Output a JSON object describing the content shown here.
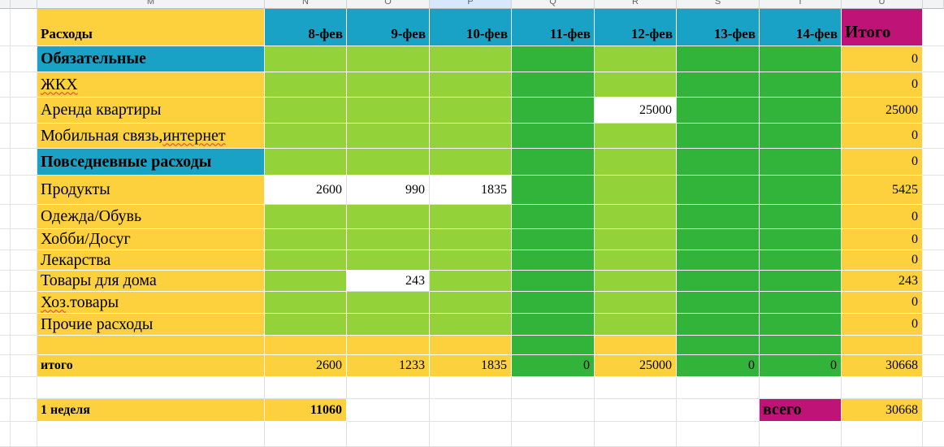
{
  "sheet": {
    "colors": {
      "yellow": "#fcd13d",
      "light_green": "#94d239",
      "dark_green": "#32b33a",
      "teal": "#1aa2c6",
      "magenta": "#c01377",
      "header_bg": "#f1f3f4",
      "header_selected": "#d8e8fc",
      "grid_grey": "#e0e0e0",
      "squiggle_red": "#e53935"
    },
    "column_headers": [
      "M",
      "N",
      "O",
      "P",
      "Q",
      "R",
      "S",
      "T",
      "U"
    ],
    "selected_column": "P",
    "title_row": {
      "label": "Расходы",
      "dates": [
        "8-фев",
        "9-фев",
        "10-фев",
        "11-фев",
        "12-фев",
        "13-фев",
        "14-фев"
      ],
      "total_label": "Итого"
    },
    "rows": [
      {
        "parts": [
          {
            "t": "Обязательные"
          }
        ],
        "label_bg": "T",
        "bold": true,
        "cells": [
          {
            "bg": "L"
          },
          {
            "bg": "L"
          },
          {
            "bg": "L"
          },
          {
            "bg": "D"
          },
          {
            "bg": "L"
          },
          {
            "bg": "D"
          },
          {
            "bg": "D"
          }
        ],
        "total": {
          "bg": "Y",
          "v": "0"
        }
      },
      {
        "parts": [
          {
            "t": "ЖКХ",
            "sq": true
          }
        ],
        "label_bg": "Y",
        "cells": [
          {
            "bg": "L"
          },
          {
            "bg": "L"
          },
          {
            "bg": "L"
          },
          {
            "bg": "D"
          },
          {
            "bg": "L"
          },
          {
            "bg": "D"
          },
          {
            "bg": "D"
          }
        ],
        "total": {
          "bg": "Y",
          "v": "0"
        }
      },
      {
        "parts": [
          {
            "t": "Аренда квартиры"
          }
        ],
        "label_bg": "Y",
        "cells": [
          {
            "bg": "L"
          },
          {
            "bg": "L"
          },
          {
            "bg": "L"
          },
          {
            "bg": "D"
          },
          {
            "bg": "W",
            "v": "25000"
          },
          {
            "bg": "D"
          },
          {
            "bg": "D"
          }
        ],
        "total": {
          "bg": "Y",
          "v": "25000"
        }
      },
      {
        "parts": [
          {
            "t": "Мобильная связь, "
          },
          {
            "t": "интернет",
            "sq": true
          }
        ],
        "label_bg": "Y",
        "cells": [
          {
            "bg": "L"
          },
          {
            "bg": "L"
          },
          {
            "bg": "L"
          },
          {
            "bg": "D"
          },
          {
            "bg": "L"
          },
          {
            "bg": "D"
          },
          {
            "bg": "D"
          }
        ],
        "total": {
          "bg": "Y",
          "v": "0"
        }
      },
      {
        "parts": [
          {
            "t": "Повседневные расходы"
          }
        ],
        "label_bg": "T",
        "bold": true,
        "cells": [
          {
            "bg": "L"
          },
          {
            "bg": "L"
          },
          {
            "bg": "L"
          },
          {
            "bg": "D"
          },
          {
            "bg": "L"
          },
          {
            "bg": "D"
          },
          {
            "bg": "D"
          }
        ],
        "total": {
          "bg": "Y",
          "v": "0"
        }
      },
      {
        "parts": [
          {
            "t": "Продукты"
          }
        ],
        "label_bg": "Y",
        "cells": [
          {
            "bg": "W",
            "v": "2600"
          },
          {
            "bg": "W",
            "v": "990"
          },
          {
            "bg": "W",
            "v": "1835"
          },
          {
            "bg": "D"
          },
          {
            "bg": "L"
          },
          {
            "bg": "D"
          },
          {
            "bg": "D"
          }
        ],
        "total": {
          "bg": "Y",
          "v": "5425"
        }
      },
      {
        "parts": [
          {
            "t": "Одежда/Обувь"
          }
        ],
        "label_bg": "Y",
        "cells": [
          {
            "bg": "L"
          },
          {
            "bg": "L"
          },
          {
            "bg": "L"
          },
          {
            "bg": "D"
          },
          {
            "bg": "L"
          },
          {
            "bg": "D"
          },
          {
            "bg": "D"
          }
        ],
        "total": {
          "bg": "Y",
          "v": "0"
        }
      },
      {
        "parts": [
          {
            "t": "Хобби/Досуг"
          }
        ],
        "label_bg": "Y",
        "cells": [
          {
            "bg": "L"
          },
          {
            "bg": "L"
          },
          {
            "bg": "L"
          },
          {
            "bg": "D"
          },
          {
            "bg": "L"
          },
          {
            "bg": "D"
          },
          {
            "bg": "D"
          }
        ],
        "total": {
          "bg": "Y",
          "v": "0"
        }
      },
      {
        "parts": [
          {
            "t": "Лекарства"
          }
        ],
        "label_bg": "Y",
        "cells": [
          {
            "bg": "L"
          },
          {
            "bg": "L"
          },
          {
            "bg": "L"
          },
          {
            "bg": "D"
          },
          {
            "bg": "L"
          },
          {
            "bg": "D"
          },
          {
            "bg": "D"
          }
        ],
        "total": {
          "bg": "Y",
          "v": "0"
        }
      },
      {
        "parts": [
          {
            "t": "Товары для дома"
          }
        ],
        "label_bg": "Y",
        "cells": [
          {
            "bg": "L"
          },
          {
            "bg": "W",
            "v": "243"
          },
          {
            "bg": "L"
          },
          {
            "bg": "D"
          },
          {
            "bg": "L"
          },
          {
            "bg": "D"
          },
          {
            "bg": "D"
          }
        ],
        "total": {
          "bg": "Y",
          "v": "243"
        }
      },
      {
        "parts": [
          {
            "t": "Хоз",
            "sq": true
          },
          {
            "t": ".товары"
          }
        ],
        "label_bg": "Y",
        "cells": [
          {
            "bg": "L"
          },
          {
            "bg": "L"
          },
          {
            "bg": "L"
          },
          {
            "bg": "D"
          },
          {
            "bg": "L"
          },
          {
            "bg": "D"
          },
          {
            "bg": "D"
          }
        ],
        "total": {
          "bg": "Y",
          "v": "0"
        }
      },
      {
        "parts": [
          {
            "t": "Прочие расходы"
          }
        ],
        "label_bg": "Y",
        "cells": [
          {
            "bg": "L"
          },
          {
            "bg": "L"
          },
          {
            "bg": "L"
          },
          {
            "bg": "D"
          },
          {
            "bg": "L"
          },
          {
            "bg": "D"
          },
          {
            "bg": "D"
          }
        ],
        "total": {
          "bg": "Y",
          "v": "0"
        }
      },
      {
        "parts": [
          {
            "t": ""
          }
        ],
        "label_bg": "Y",
        "cells": [
          {
            "bg": "Y"
          },
          {
            "bg": "Y"
          },
          {
            "bg": "Y"
          },
          {
            "bg": "D"
          },
          {
            "bg": "Y"
          },
          {
            "bg": "D"
          },
          {
            "bg": "D"
          }
        ],
        "total": {
          "bg": "Y"
        }
      },
      {
        "parts": [
          {
            "t": "итого"
          }
        ],
        "label_bg": "Y",
        "bold": true,
        "small": true,
        "cells": [
          {
            "bg": "Y",
            "v": "2600"
          },
          {
            "bg": "Y",
            "v": "1233"
          },
          {
            "bg": "Y",
            "v": "1835"
          },
          {
            "bg": "D",
            "v": "0"
          },
          {
            "bg": "Y",
            "v": "25000"
          },
          {
            "bg": "D",
            "v": "0"
          },
          {
            "bg": "D",
            "v": "0"
          }
        ],
        "total": {
          "bg": "Y",
          "v": "30668"
        }
      },
      {
        "parts": [
          {
            "t": ""
          }
        ],
        "label_bg": "W",
        "cells": [
          {
            "bg": "W"
          },
          {
            "bg": "W"
          },
          {
            "bg": "W"
          },
          {
            "bg": "W"
          },
          {
            "bg": "W"
          },
          {
            "bg": "W"
          },
          {
            "bg": "W"
          }
        ],
        "total": {
          "bg": "W"
        }
      },
      {
        "parts": [
          {
            "t": "1 неделя"
          }
        ],
        "label_bg": "Y",
        "bold": true,
        "small": true,
        "cells": [
          {
            "bg": "Y",
            "v": "11060",
            "b": true
          },
          {
            "bg": "W"
          },
          {
            "bg": "W"
          },
          {
            "bg": "W"
          },
          {
            "bg": "W"
          },
          {
            "bg": "W"
          },
          {
            "bg": "M",
            "v": "всего",
            "b": true,
            "align": "left"
          }
        ],
        "total": {
          "bg": "Y",
          "v": "30668"
        }
      },
      {
        "parts": [
          {
            "t": ""
          }
        ],
        "label_bg": "W",
        "cells": [
          {
            "bg": "W"
          },
          {
            "bg": "W"
          },
          {
            "bg": "W"
          },
          {
            "bg": "W"
          },
          {
            "bg": "W"
          },
          {
            "bg": "W"
          },
          {
            "bg": "W"
          }
        ],
        "total": {
          "bg": "W"
        }
      }
    ]
  }
}
